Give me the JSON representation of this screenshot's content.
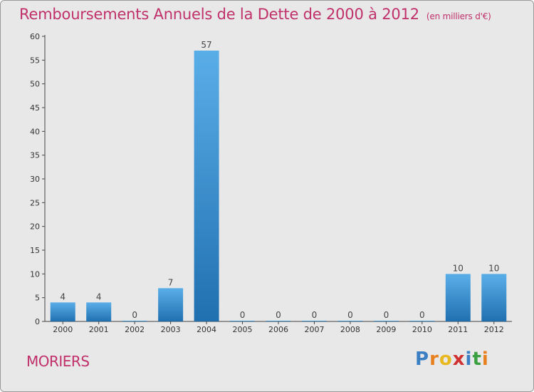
{
  "title": "Remboursements Annuels de la Dette de 2000 à 2012",
  "unit": "(en milliers d'€)",
  "place": "MORIERS",
  "logo": {
    "text": "Proxiti",
    "colors": [
      "#3a7fc4",
      "#e8801e",
      "#e8b820",
      "#d03030",
      "#3a7fc4",
      "#3aa040",
      "#e8801e"
    ]
  },
  "colors": {
    "title": "#c0306a",
    "bar_light": "#5aaee8",
    "bar_dark": "#2070b0"
  },
  "chart_data": {
    "type": "bar",
    "categories": [
      "2000",
      "2001",
      "2002",
      "2003",
      "2004",
      "2005",
      "2006",
      "2007",
      "2008",
      "2009",
      "2010",
      "2011",
      "2012"
    ],
    "values": [
      4,
      4,
      0,
      7,
      57,
      0,
      0,
      0,
      0,
      0,
      0,
      10,
      10
    ],
    "data_labels": [
      "4",
      "4",
      "0",
      "7",
      "57",
      "0",
      "0",
      "0",
      "0",
      "0",
      "0",
      "10",
      "10"
    ],
    "ylim": [
      0,
      60
    ],
    "yticks": [
      0,
      5,
      10,
      15,
      20,
      25,
      30,
      35,
      40,
      45,
      50,
      55,
      60
    ],
    "grid": false,
    "legend": "none"
  }
}
